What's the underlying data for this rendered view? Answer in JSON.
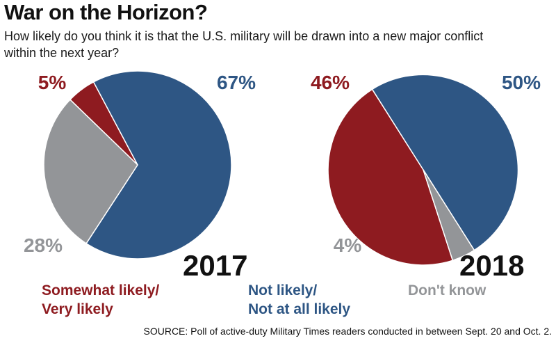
{
  "title": "War on the Horizon?",
  "subtitle": "How likely do you think it is that the U.S. military will be drawn into a new major conflict within the next year?",
  "colors": {
    "likely": "#8e1b20",
    "not_likely": "#2e5684",
    "dont_know": "#939598"
  },
  "legend": {
    "likely": [
      "Somewhat likely/",
      "Very likely"
    ],
    "not_likely": [
      "Not likely/",
      "Not at all likely"
    ],
    "dont_know": "Don't know"
  },
  "source": "SOURCE: Poll of active-duty Military Times readers conducted in between Sept. 20 and Oct. 2.",
  "chart_data": [
    {
      "type": "pie",
      "year_label": "2017",
      "slices": [
        {
          "category": "Somewhat likely/Very likely",
          "value": 5,
          "label": "5%"
        },
        {
          "category": "Not likely/Not at all likely",
          "value": 67,
          "label": "67%"
        },
        {
          "category": "Don't know",
          "value": 28,
          "label": "28%"
        }
      ]
    },
    {
      "type": "pie",
      "year_label": "2018",
      "slices": [
        {
          "category": "Somewhat likely/Very likely",
          "value": 46,
          "label": "46%"
        },
        {
          "category": "Not likely/Not at all likely",
          "value": 50,
          "label": "50%"
        },
        {
          "category": "Don't know",
          "value": 4,
          "label": "4%"
        }
      ]
    }
  ]
}
